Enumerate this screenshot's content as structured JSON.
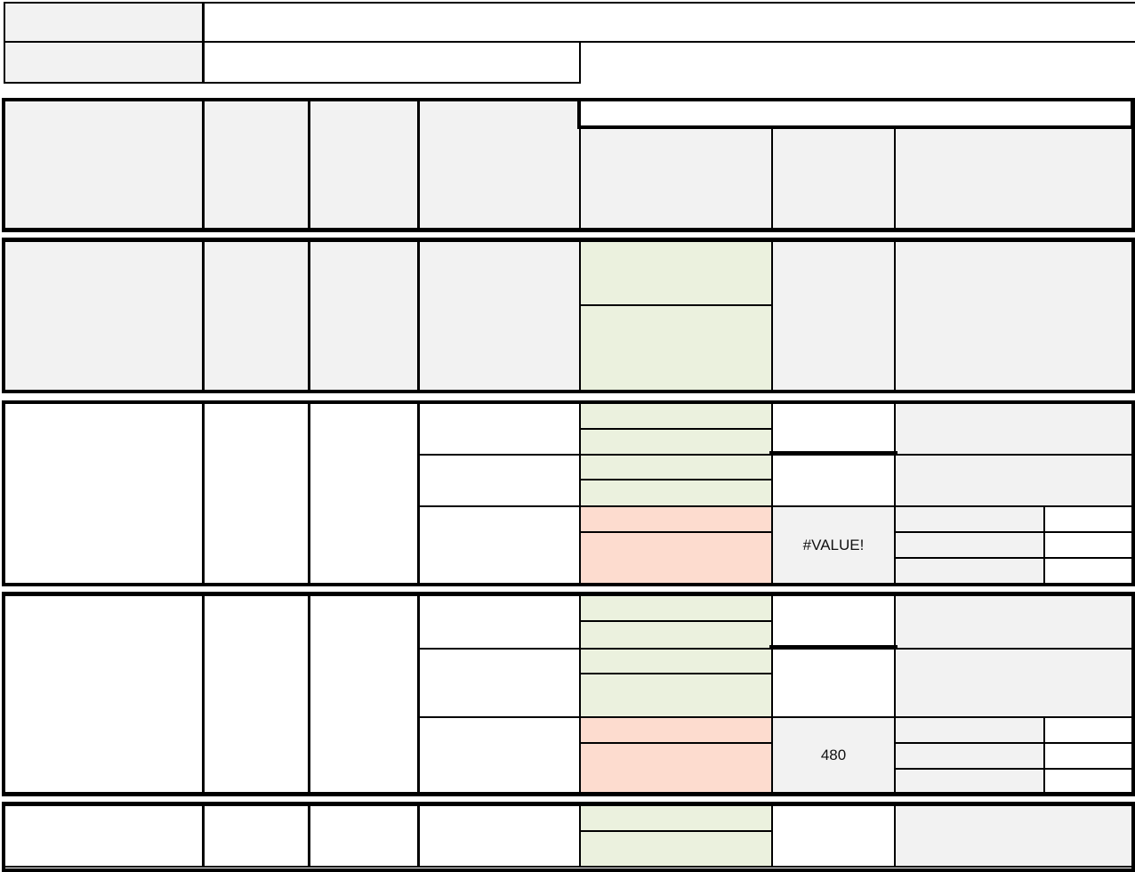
{
  "sheet": {
    "value_error": "#VALUE!",
    "value_480": "480"
  },
  "colors": {
    "header_fill": "#f2f2f2",
    "green_fill": "#ebf1de",
    "red_fill": "#fddccf",
    "border": "#000000"
  }
}
